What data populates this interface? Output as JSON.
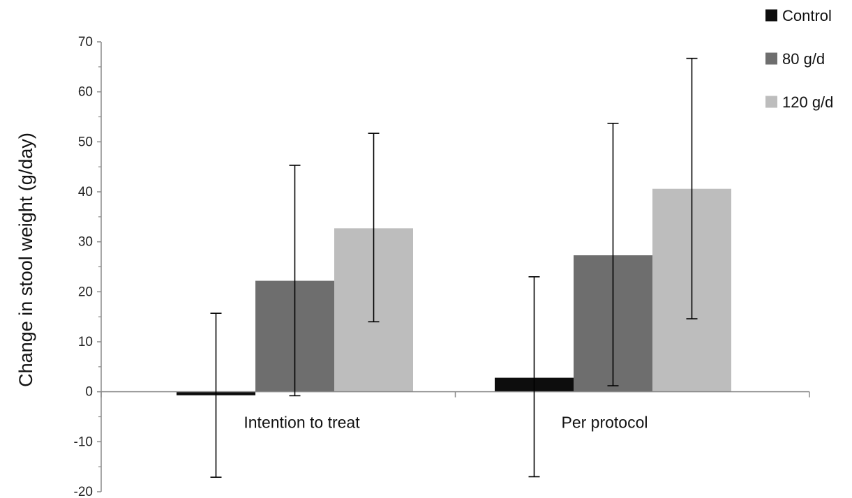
{
  "chart_data": {
    "type": "bar",
    "categories": [
      "Intention to treat",
      "Per protocol"
    ],
    "series": [
      {
        "name": "Control",
        "values": [
          -0.7,
          2.8
        ],
        "error_low": [
          -17.1,
          -17.0
        ],
        "error_high": [
          15.7,
          23.0
        ],
        "color": "#0d0d0d"
      },
      {
        "name": "80 g/d",
        "values": [
          22.2,
          27.3
        ],
        "error_low": [
          -0.8,
          1.2
        ],
        "error_high": [
          45.3,
          53.7
        ],
        "color": "#6e6e6e"
      },
      {
        "name": "120 g/d",
        "values": [
          32.7,
          40.6
        ],
        "error_low": [
          14.0,
          14.6
        ],
        "error_high": [
          51.7,
          66.7
        ],
        "color": "#bdbdbd"
      }
    ],
    "title": "",
    "xlabel": "",
    "ylabel": "Change in stool weight (g/day)",
    "ylim": [
      -20,
      70
    ],
    "yticks": [
      -20,
      -10,
      0,
      10,
      20,
      30,
      40,
      50,
      60,
      70
    ],
    "ytick_labels": [
      "-20",
      "-10",
      "0",
      "10",
      "20",
      "30",
      "40",
      "50",
      "60",
      "70"
    ],
    "grid": false,
    "legend_position": "top-right"
  }
}
